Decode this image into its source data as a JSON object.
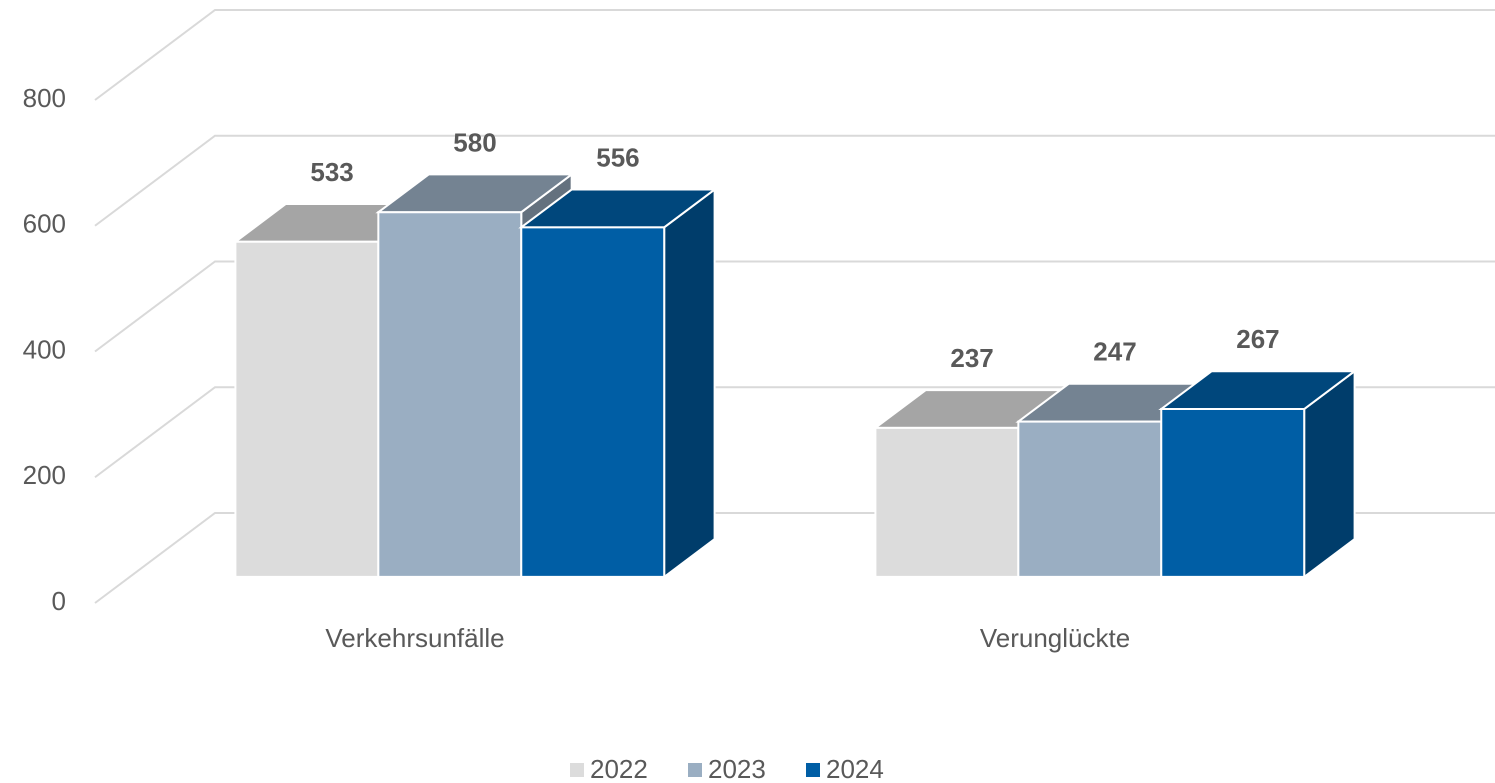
{
  "chart_data": {
    "type": "bar3d",
    "categories": [
      "Verkehrsunfälle",
      "Verunglückte"
    ],
    "series": [
      {
        "name": "2022",
        "color": "#dcdcdc",
        "values": [
          533,
          237
        ]
      },
      {
        "name": "2023",
        "color": "#9aaec2",
        "values": [
          580,
          247
        ]
      },
      {
        "name": "2024",
        "color": "#005ea5",
        "values": [
          556,
          267
        ]
      }
    ],
    "ylim": [
      0,
      800
    ],
    "yticks": [
      0,
      200,
      400,
      600,
      800
    ],
    "grid": true,
    "legend": "bottom"
  }
}
